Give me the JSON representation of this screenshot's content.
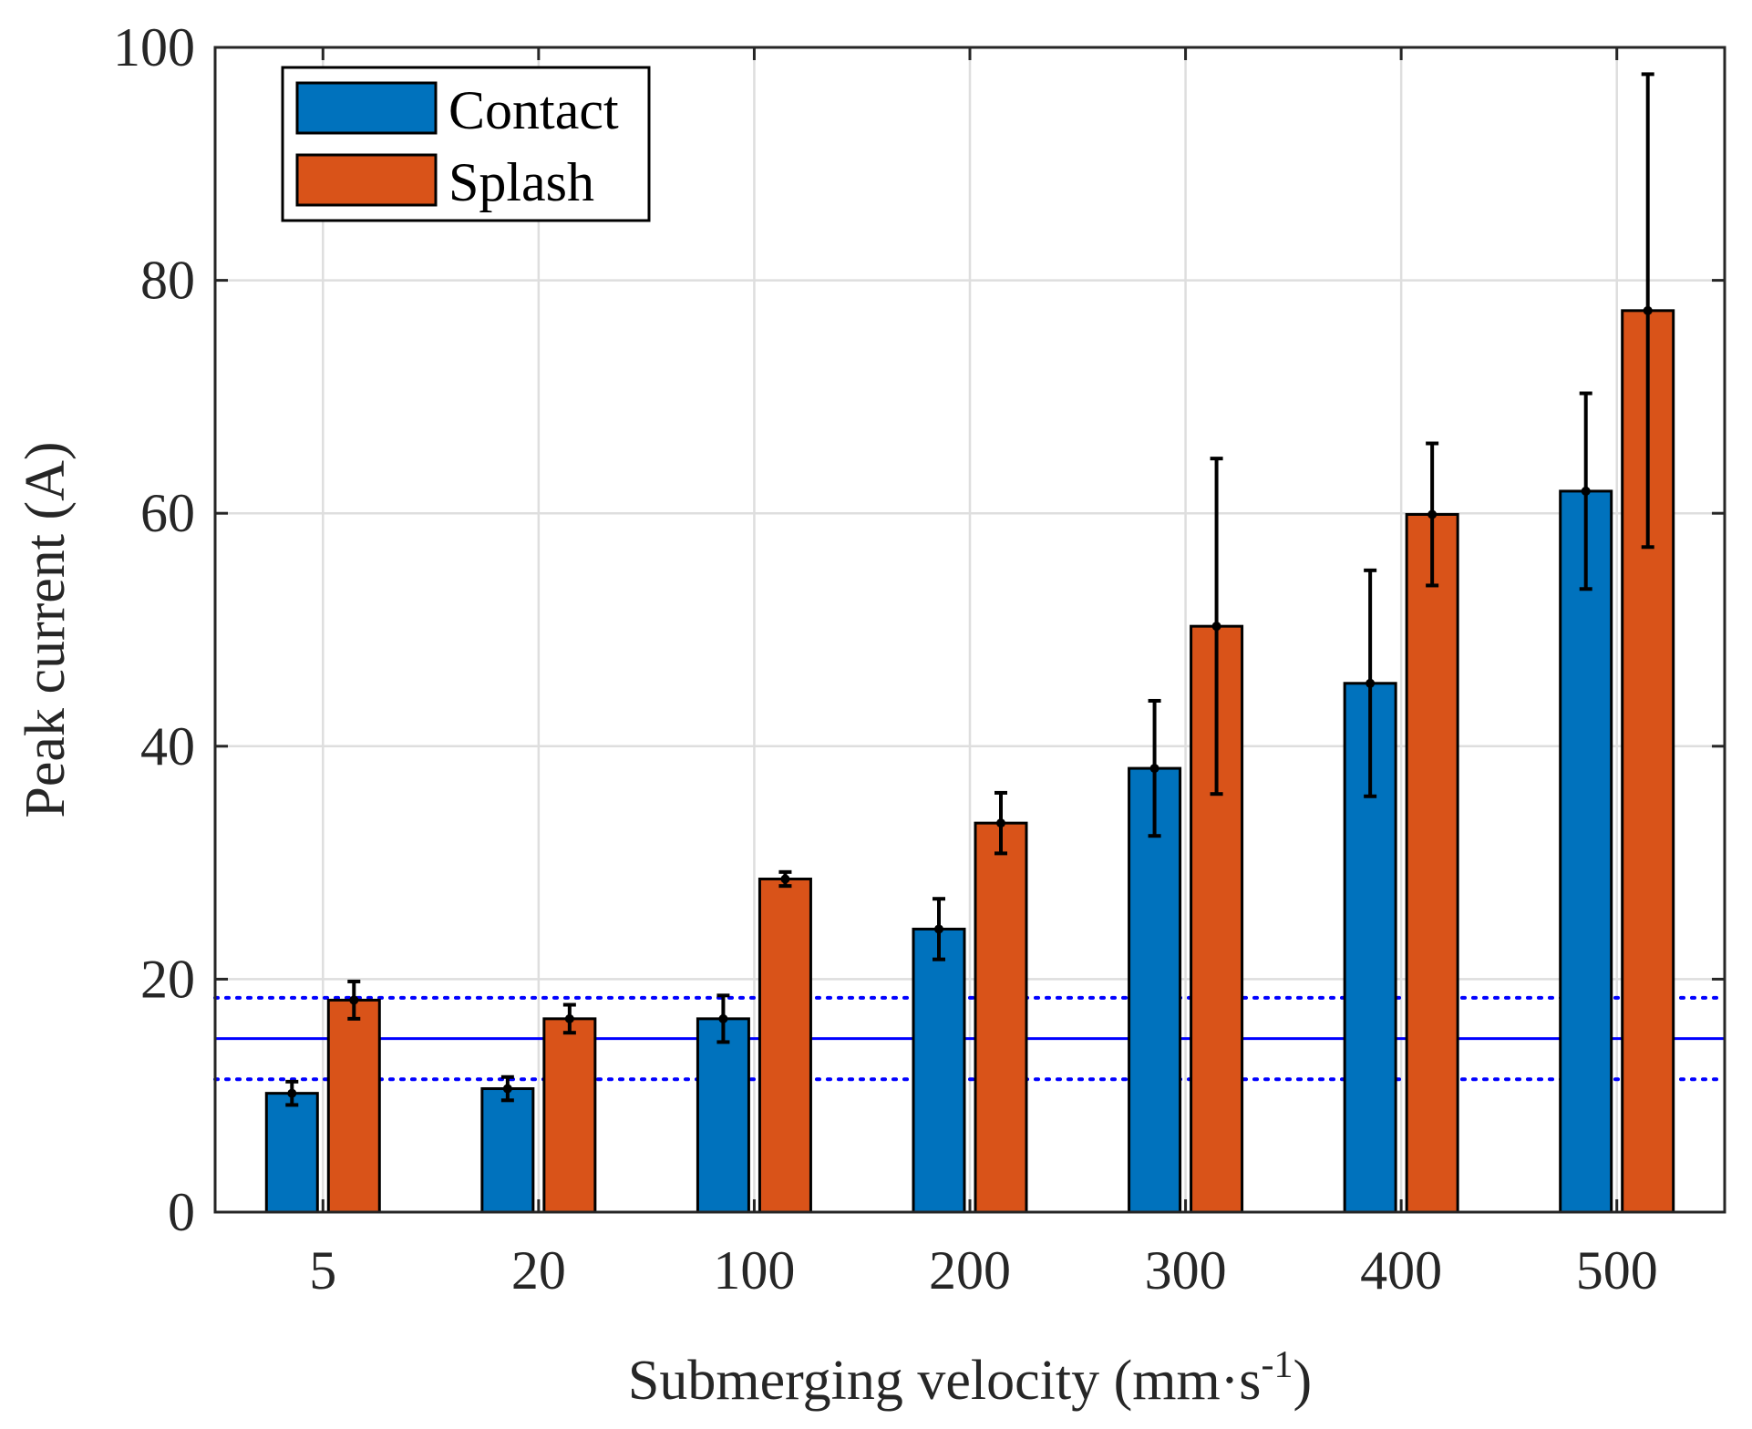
{
  "chart_data": {
    "type": "bar",
    "categories": [
      "5",
      "20",
      "100",
      "200",
      "300",
      "400",
      "500"
    ],
    "series": [
      {
        "name": "Contact",
        "color": "#0072BD",
        "values": [
          10.2,
          10.6,
          16.6,
          24.3,
          38.1,
          45.4,
          61.9
        ],
        "err_low": [
          1.0,
          1.0,
          2.0,
          2.6,
          5.8,
          9.7,
          8.4
        ],
        "err_high": [
          1.0,
          1.0,
          2.0,
          2.6,
          5.8,
          9.7,
          8.4
        ]
      },
      {
        "name": "Splash",
        "color": "#D95319",
        "values": [
          18.2,
          16.6,
          28.6,
          33.4,
          50.3,
          59.9,
          77.4
        ],
        "err_low": [
          1.6,
          1.2,
          0.6,
          2.6,
          14.4,
          6.1,
          20.3
        ],
        "err_high": [
          1.6,
          1.2,
          0.6,
          2.6,
          14.4,
          6.1,
          20.3
        ]
      }
    ],
    "reference_lines": [
      {
        "y": 14.9,
        "style": "solid",
        "color": "#0000FF"
      },
      {
        "y": 18.4,
        "style": "dotted",
        "color": "#0000FF"
      },
      {
        "y": 11.4,
        "style": "dotted",
        "color": "#0000FF"
      }
    ],
    "xlabel": "Submerging velocity (mm·s",
    "xlabel_superscript": "-1",
    "xlabel_suffix": ")",
    "ylabel": "Peak current (A)",
    "ylim": [
      0,
      100
    ],
    "yticks": [
      "0",
      "20",
      "40",
      "60",
      "80",
      "100"
    ],
    "ytick_values": [
      0,
      20,
      40,
      60,
      80,
      100
    ],
    "grid": true,
    "legend_position": "top-left"
  }
}
